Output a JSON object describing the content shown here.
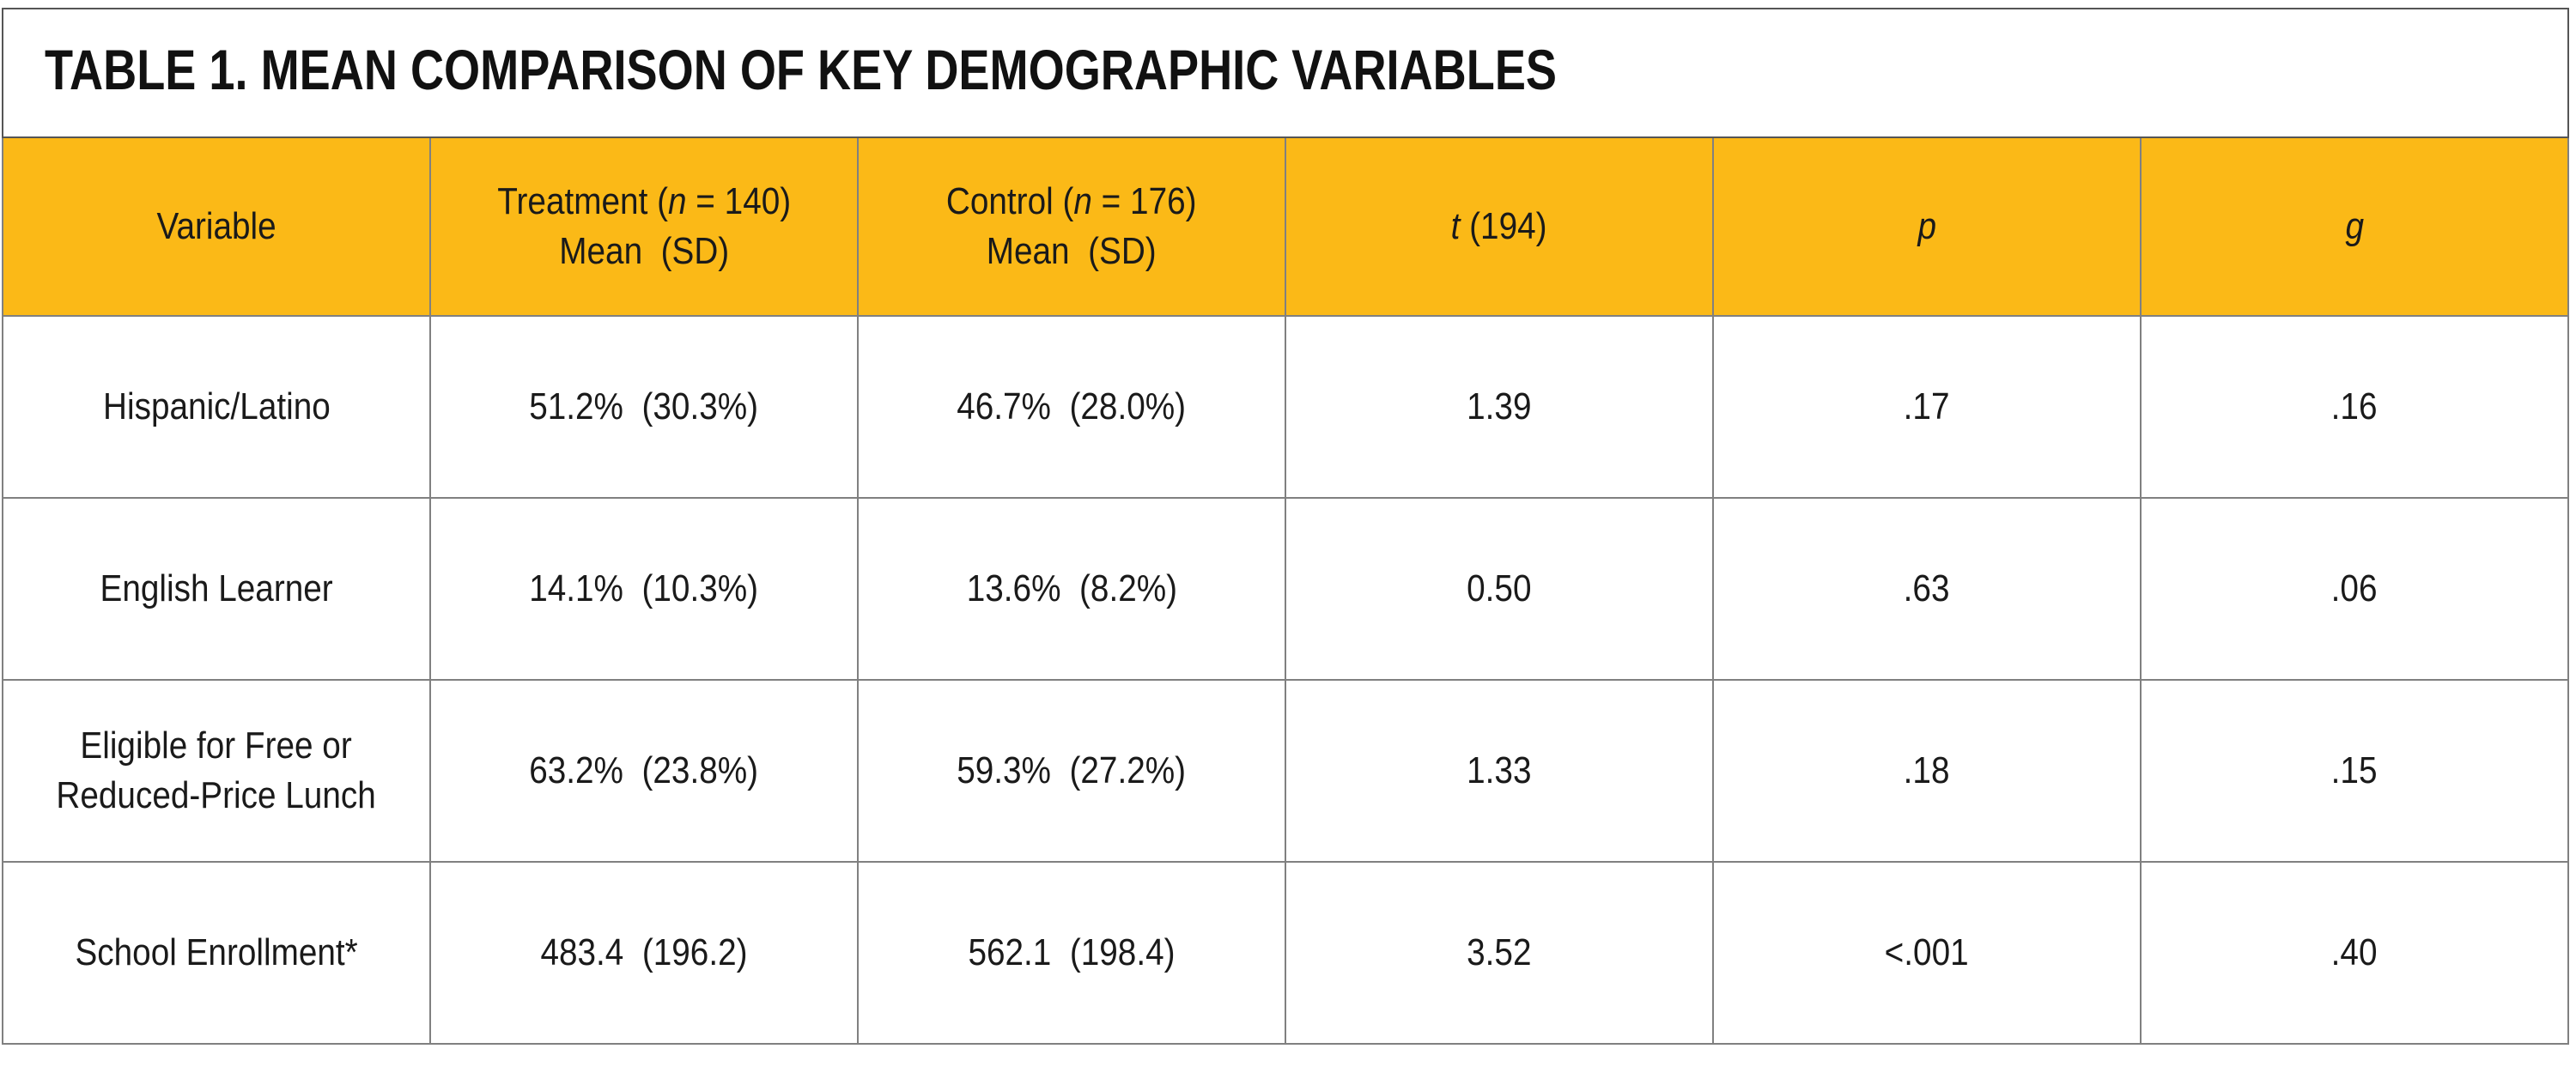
{
  "table": {
    "title": "TABLE 1. MEAN COMPARISON OF KEY DEMOGRAPHIC VARIABLES",
    "header": [
      [
        [
          {
            "text": "Variable"
          }
        ]
      ],
      [
        [
          {
            "text": "Treatment ("
          },
          {
            "text": "n",
            "italic": true
          },
          {
            "text": " = 140)"
          }
        ],
        [
          {
            "text": "Mean  (SD)"
          }
        ]
      ],
      [
        [
          {
            "text": "Control ("
          },
          {
            "text": "n",
            "italic": true
          },
          {
            "text": " = 176)"
          }
        ],
        [
          {
            "text": "Mean  (SD)"
          }
        ]
      ],
      [
        [
          {
            "text": "t",
            "italic": true
          },
          {
            "text": " (194)"
          }
        ]
      ],
      [
        [
          {
            "text": "p",
            "italic": true
          }
        ]
      ],
      [
        [
          {
            "text": "g",
            "italic": true
          }
        ]
      ]
    ],
    "rows": [
      [
        [
          "Hispanic/Latino"
        ],
        [
          "51.2%  (30.3%)"
        ],
        [
          "46.7%  (28.0%)"
        ],
        [
          "1.39"
        ],
        [
          ".17"
        ],
        [
          ".16"
        ]
      ],
      [
        [
          "English Learner"
        ],
        [
          "14.1%  (10.3%)"
        ],
        [
          "13.6%  (8.2%)"
        ],
        [
          "0.50"
        ],
        [
          ".63"
        ],
        [
          ".06"
        ]
      ],
      [
        [
          "Eligible for Free or",
          "Reduced-Price Lunch"
        ],
        [
          "63.2%  (23.8%)"
        ],
        [
          "59.3%  (27.2%)"
        ],
        [
          "1.33"
        ],
        [
          ".18"
        ],
        [
          ".15"
        ]
      ],
      [
        [
          "School Enrollment*"
        ],
        [
          "483.4  (196.2)"
        ],
        [
          "562.1  (198.4)"
        ],
        [
          "3.52"
        ],
        [
          "<.001"
        ],
        [
          ".40"
        ]
      ]
    ]
  }
}
